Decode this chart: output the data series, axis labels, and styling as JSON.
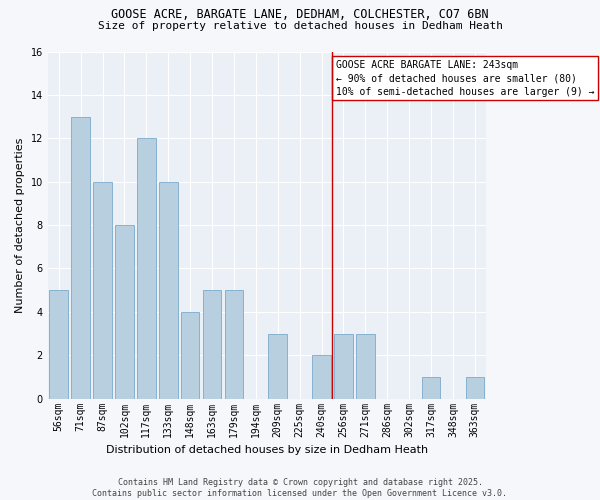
{
  "title1": "GOOSE ACRE, BARGATE LANE, DEDHAM, COLCHESTER, CO7 6BN",
  "title2": "Size of property relative to detached houses in Dedham Heath",
  "xlabel": "Distribution of detached houses by size in Dedham Heath",
  "ylabel": "Number of detached properties",
  "categories": [
    "56sqm",
    "71sqm",
    "87sqm",
    "102sqm",
    "117sqm",
    "133sqm",
    "148sqm",
    "163sqm",
    "179sqm",
    "194sqm",
    "209sqm",
    "225sqm",
    "240sqm",
    "256sqm",
    "271sqm",
    "286sqm",
    "302sqm",
    "317sqm",
    "348sqm",
    "363sqm"
  ],
  "values": [
    5,
    13,
    10,
    8,
    12,
    10,
    4,
    5,
    5,
    0,
    3,
    0,
    2,
    3,
    3,
    0,
    0,
    1,
    0,
    1
  ],
  "bar_color": "#b8cfe0",
  "bar_edge_color": "#7aaaca",
  "vline_x": 12.5,
  "vline_color": "#cc0000",
  "annotation_text": "GOOSE ACRE BARGATE LANE: 243sqm\n← 90% of detached houses are smaller (80)\n10% of semi-detached houses are larger (9) →",
  "annotation_box_color": "#cc0000",
  "ylim": [
    0,
    16
  ],
  "yticks": [
    0,
    2,
    4,
    6,
    8,
    10,
    12,
    14,
    16
  ],
  "bg_color": "#eaf0f6",
  "fig_bg_color": "#f5f7fa",
  "footer": "Contains HM Land Registry data © Crown copyright and database right 2025.\nContains public sector information licensed under the Open Government Licence v3.0.",
  "title1_fontsize": 8.5,
  "title2_fontsize": 8.0,
  "xlabel_fontsize": 8.0,
  "ylabel_fontsize": 8.0,
  "tick_fontsize": 7.0,
  "annotation_fontsize": 7.0,
  "footer_fontsize": 6.0
}
